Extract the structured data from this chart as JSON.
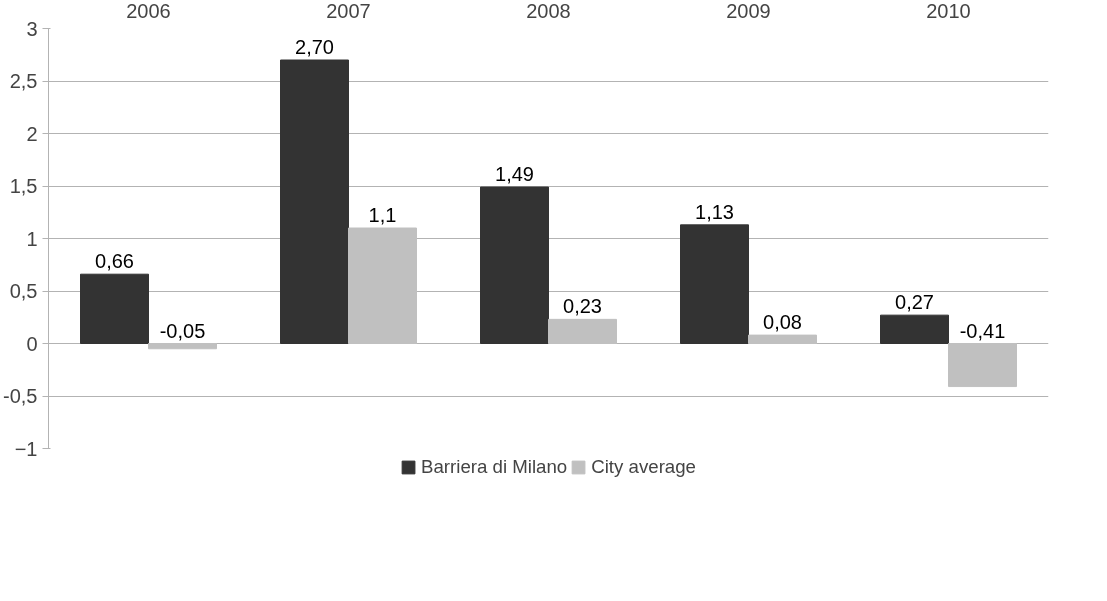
{
  "chart_data": {
    "type": "bar",
    "categories": [
      "2006",
      "2007",
      "2008",
      "2009",
      "2010"
    ],
    "series": [
      {
        "name": "Barriera di Milano",
        "color": "#333333",
        "values": [
          0.66,
          2.7,
          1.49,
          1.13,
          0.27
        ],
        "value_labels": [
          "0,66",
          "2,70",
          "1,49",
          "1,13",
          "0,27"
        ]
      },
      {
        "name": "City average",
        "color": "#c0c0c0",
        "values": [
          -0.05,
          1.1,
          0.23,
          0.08,
          -0.41
        ],
        "value_labels": [
          "-0,05",
          "1,1",
          "0,23",
          "0,08",
          "-0,41"
        ]
      }
    ],
    "ylim": [
      -1,
      3
    ],
    "yticks": [
      -1,
      {
        "value": -0.5,
        "label": "-0,5"
      },
      0,
      {
        "value": 0.5,
        "label": "0,5"
      },
      1,
      {
        "value": 1.5,
        "label": "1,5"
      },
      2,
      {
        "value": 2.5,
        "label": "2,5"
      },
      3
    ],
    "grid": "y",
    "legend": "bottom"
  }
}
